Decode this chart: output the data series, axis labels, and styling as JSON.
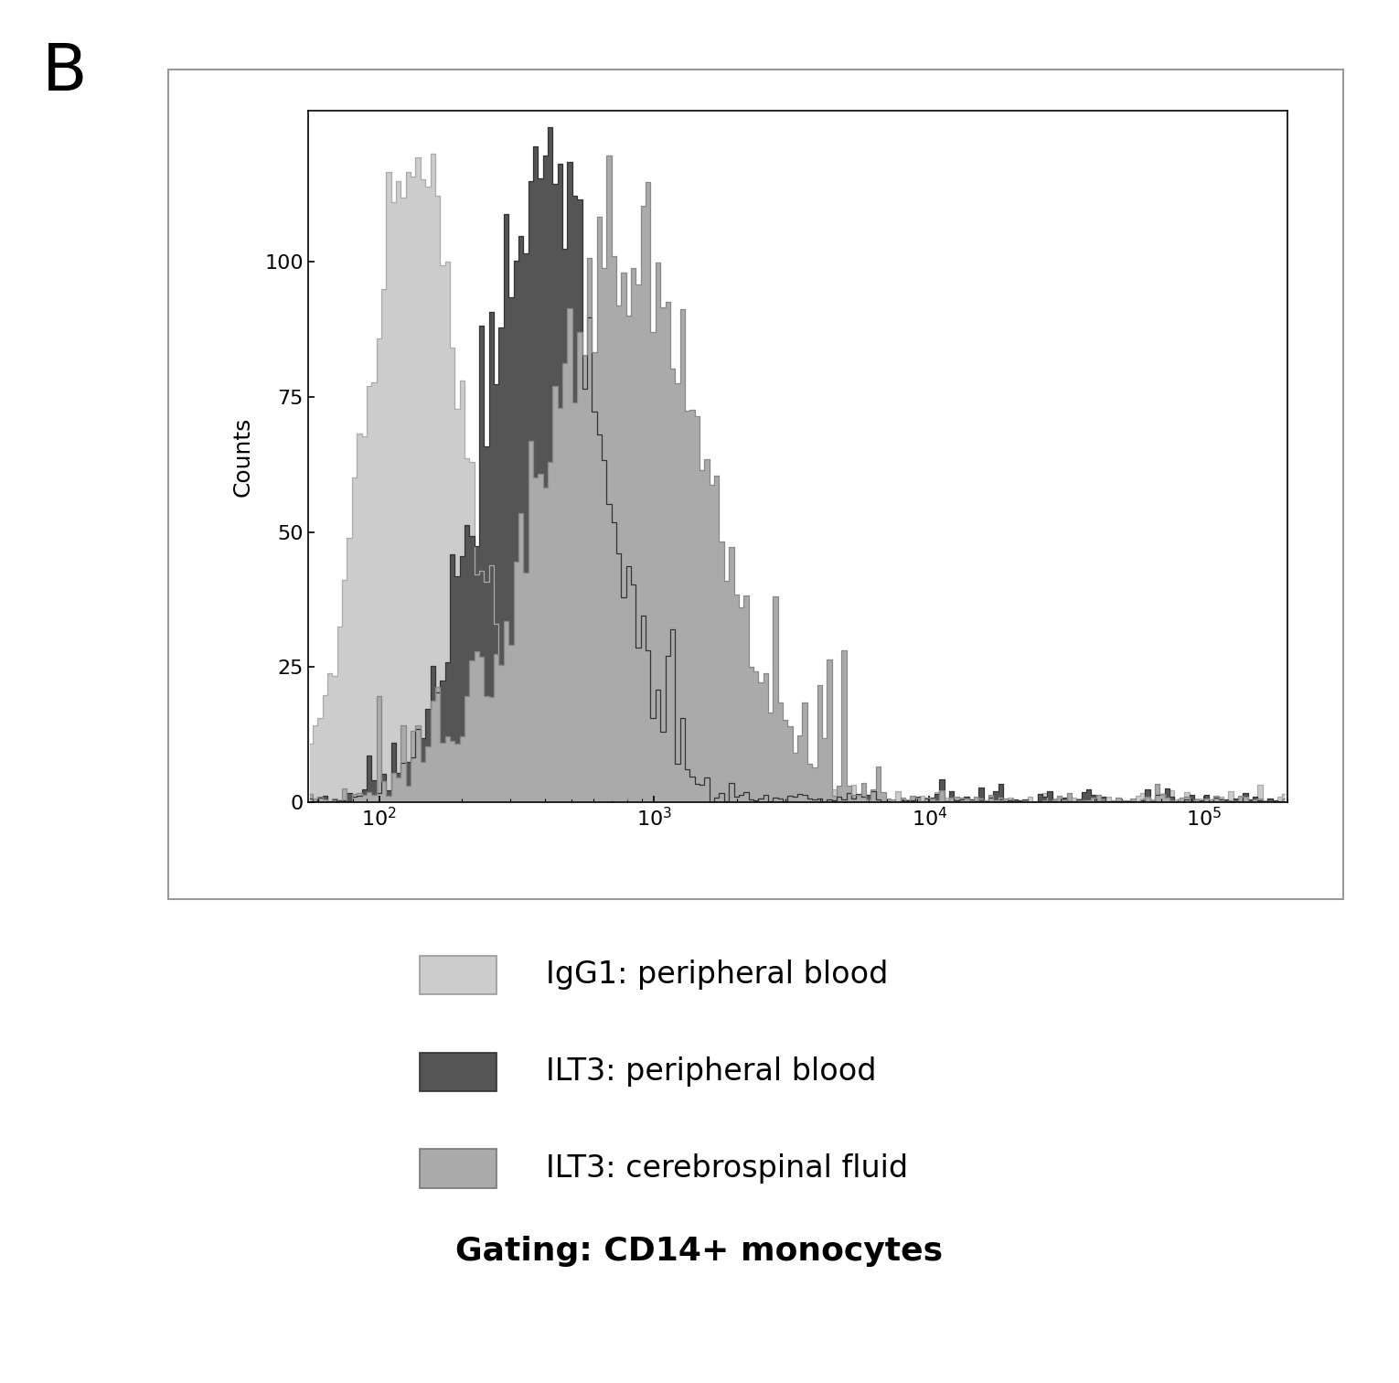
{
  "title_label": "B",
  "ylabel": "Counts",
  "xlabel": "",
  "ylim": [
    0,
    128
  ],
  "yticks": [
    0,
    25,
    50,
    75,
    100
  ],
  "xlim_log": [
    55,
    200000
  ],
  "background_color": "#ffffff",
  "panel_bg": "#ffffff",
  "legend_entries": [
    {
      "label": "IgG1: peripheral blood",
      "color": "#cccccc",
      "edgecolor": "#999999"
    },
    {
      "label": "ILT3: peripheral blood",
      "color": "#555555",
      "edgecolor": "#333333"
    },
    {
      "label": "ILT3: cerebrospinal fluid",
      "color": "#aaaaaa",
      "edgecolor": "#777777"
    }
  ],
  "gating_label": "Gating: CD14+ monocytes",
  "hist1": {
    "mean_log": 2.13,
    "std_log": 0.17,
    "peak": 118,
    "color": "#cccccc",
    "edgecolor": "#aaaaaa"
  },
  "hist2": {
    "mean_log": 2.6,
    "std_log": 0.2,
    "peak": 122,
    "color": "#555555",
    "edgecolor": "#333333"
  },
  "hist3": {
    "mean_log": 2.88,
    "std_log": 0.28,
    "peak": 112,
    "color": "#aaaaaa",
    "edgecolor": "#888888"
  }
}
